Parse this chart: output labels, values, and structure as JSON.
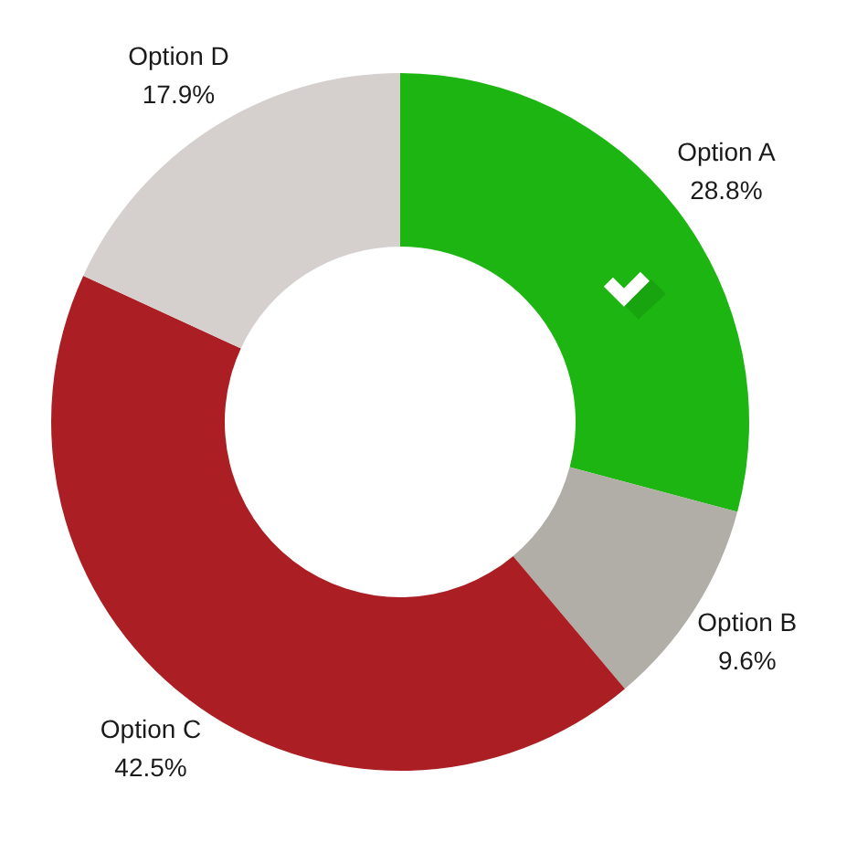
{
  "chart_data": {
    "type": "donut",
    "categories": [
      "Option A",
      "Option B",
      "Option C",
      "Option D"
    ],
    "values": [
      28.8,
      9.6,
      42.5,
      17.9
    ],
    "colors": [
      "#1db512",
      "#b1ada7",
      "#ab1f24",
      "#d5d0cd"
    ],
    "value_labels": [
      "28.8%",
      "9.6%",
      "42.5%",
      "17.9%"
    ],
    "legend": false
  }
}
